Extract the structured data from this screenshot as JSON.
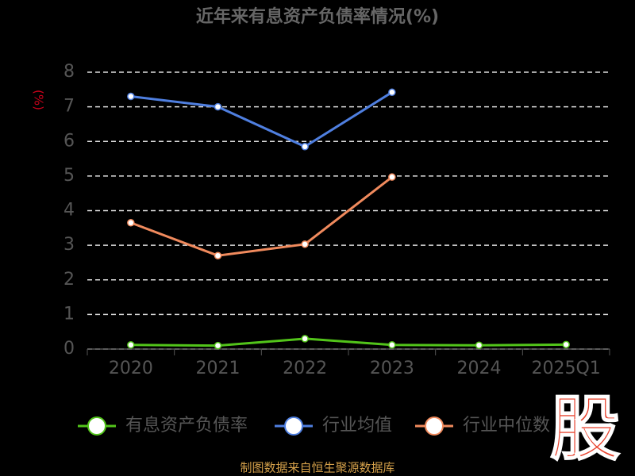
{
  "chart_data": {
    "type": "line",
    "title": "近年来有息资产负债率情况(%)",
    "y_label": "(%)",
    "categories": [
      "2020",
      "2021",
      "2022",
      "2023",
      "2024",
      "2025Q1"
    ],
    "series": [
      {
        "name": "有息资产负债率",
        "color": "#52c41a",
        "values": [
          0.12,
          0.1,
          0.3,
          0.12,
          0.11,
          0.13
        ]
      },
      {
        "name": "行业均值",
        "color": "#4f7fe0",
        "values": [
          7.3,
          7.0,
          5.85,
          7.42,
          null,
          null
        ]
      },
      {
        "name": "行业中位数",
        "color": "#f08a5d",
        "values": [
          3.65,
          2.7,
          3.03,
          4.97,
          null,
          null
        ]
      }
    ],
    "ylim": [
      0,
      8
    ],
    "yticks": [
      0,
      1,
      2,
      3,
      4,
      5,
      6,
      7,
      8
    ],
    "grid": true,
    "legend": "bottom",
    "source": "制图数据来自恒生聚源数据库",
    "logo": "股"
  }
}
